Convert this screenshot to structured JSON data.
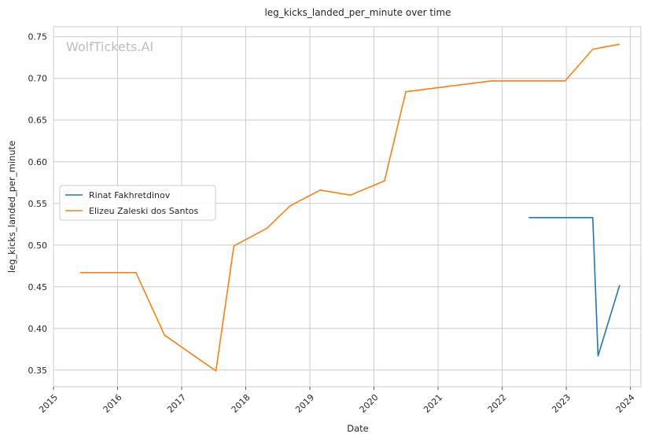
{
  "chart_data": {
    "type": "line",
    "title": "leg_kicks_landed_per_minute over time",
    "xlabel": "Date",
    "ylabel": "leg_kicks_landed_per_minute",
    "watermark": "WolfTickets.AI",
    "x_ticks": [
      "2015",
      "2016",
      "2017",
      "2018",
      "2019",
      "2020",
      "2021",
      "2022",
      "2023",
      "2024"
    ],
    "y_ticks": [
      "0.35",
      "0.40",
      "0.45",
      "0.50",
      "0.55",
      "0.60",
      "0.65",
      "0.70",
      "0.75"
    ],
    "xlim": [
      "2015-01-01",
      "2024-03-01"
    ],
    "ylim": [
      0.33,
      0.762
    ],
    "grid": true,
    "legend_position": "center-left",
    "series": [
      {
        "name": "Rinat Fakhretdinov",
        "color": "#1f77b4",
        "points": [
          {
            "x": "2022-06-01",
            "y": 0.533
          },
          {
            "x": "2023-06-01",
            "y": 0.533
          },
          {
            "x": "2023-07-01",
            "y": 0.367
          },
          {
            "x": "2023-11-01",
            "y": 0.452
          }
        ]
      },
      {
        "name": "Elizeu Zaleski dos Santos",
        "color": "#ff7f0e",
        "points": [
          {
            "x": "2015-06-01",
            "y": 0.467
          },
          {
            "x": "2016-04-15",
            "y": 0.467
          },
          {
            "x": "2016-09-25",
            "y": 0.392
          },
          {
            "x": "2017-07-15",
            "y": 0.349
          },
          {
            "x": "2017-10-25",
            "y": 0.499
          },
          {
            "x": "2018-05-01",
            "y": 0.52
          },
          {
            "x": "2018-09-10",
            "y": 0.547
          },
          {
            "x": "2019-03-01",
            "y": 0.566
          },
          {
            "x": "2019-08-20",
            "y": 0.56
          },
          {
            "x": "2020-03-01",
            "y": 0.577
          },
          {
            "x": "2020-07-01",
            "y": 0.684
          },
          {
            "x": "2021-11-01",
            "y": 0.697
          },
          {
            "x": "2022-12-25",
            "y": 0.697
          },
          {
            "x": "2023-06-01",
            "y": 0.735
          },
          {
            "x": "2023-06-25",
            "y": 0.736
          },
          {
            "x": "2023-11-01",
            "y": 0.741
          }
        ]
      }
    ]
  }
}
